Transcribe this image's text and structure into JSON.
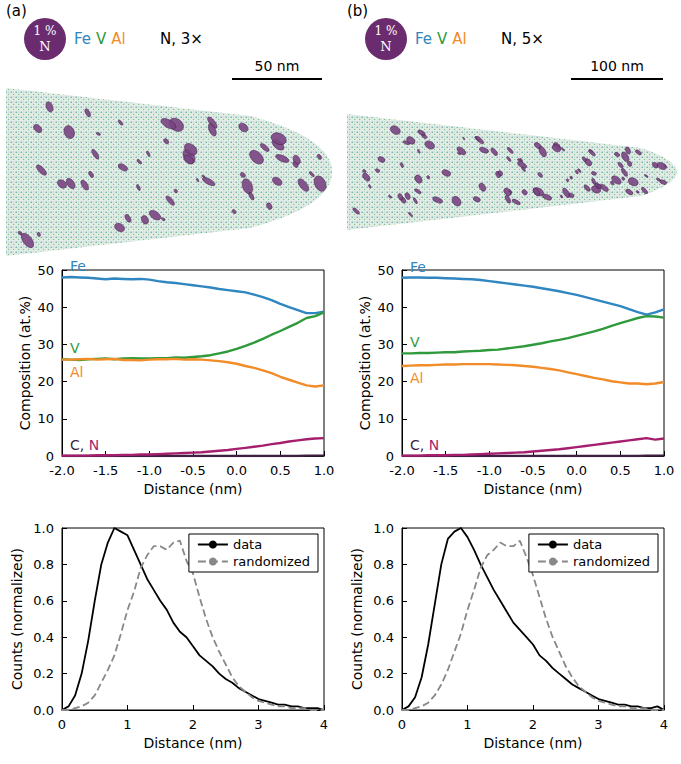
{
  "panels": [
    {
      "letter": "(a)",
      "isosurface": {
        "value": "1 %",
        "element": "N",
        "color": "#6b2c6f"
      },
      "elements": [
        {
          "text": "Fe",
          "color": "#2f86c0"
        },
        {
          "text": "V",
          "color": "#2f9a3c"
        },
        {
          "text": "Al",
          "color": "#f28c28"
        }
      ],
      "ion_label": "N, 3×",
      "scale_bar": "50 nm"
    },
    {
      "letter": "(b)",
      "isosurface": {
        "value": "1 %",
        "element": "N",
        "color": "#6b2c6f"
      },
      "elements": [
        {
          "text": "Fe",
          "color": "#2f86c0"
        },
        {
          "text": "V",
          "color": "#2f9a3c"
        },
        {
          "text": "Al",
          "color": "#f28c28"
        }
      ],
      "ion_label": "N, 5×",
      "scale_bar": "100 nm"
    }
  ],
  "chart_data": [
    {
      "type": "line",
      "xlabel": "Distance (nm)",
      "ylabel": "Composition (at.%)",
      "x": [
        -2,
        -1.9,
        -1.8,
        -1.7,
        -1.6,
        -1.5,
        -1.4,
        -1.3,
        -1.2,
        -1.1,
        -1,
        -0.9,
        -0.8,
        -0.7,
        -0.6,
        -0.5,
        -0.4,
        -0.3,
        -0.2,
        -0.1,
        0,
        0.1,
        0.2,
        0.3,
        0.4,
        0.5,
        0.6,
        0.7,
        0.8,
        0.9,
        1
      ],
      "series": [
        {
          "name": "Fe",
          "color": "#2f86c0",
          "values": [
            48.0,
            48.1,
            48.0,
            47.9,
            47.7,
            47.5,
            47.7,
            47.6,
            47.5,
            47.6,
            47.4,
            47.0,
            46.7,
            46.5,
            46.2,
            45.9,
            45.6,
            45.3,
            44.9,
            44.6,
            44.3,
            44.0,
            43.4,
            42.7,
            41.9,
            40.9,
            40.0,
            39.2,
            38.4,
            38.4,
            38.8
          ]
        },
        {
          "name": "V",
          "color": "#2f9a3c",
          "values": [
            26.0,
            25.9,
            25.8,
            26.0,
            26.1,
            26.2,
            26.0,
            26.2,
            26.3,
            26.2,
            26.2,
            26.3,
            26.3,
            26.5,
            26.4,
            26.6,
            26.8,
            27.1,
            27.6,
            28.1,
            28.8,
            29.6,
            30.5,
            31.5,
            32.6,
            33.6,
            34.7,
            35.8,
            37.1,
            37.6,
            38.6
          ]
        },
        {
          "name": "Al",
          "color": "#f28c28",
          "values": [
            25.9,
            25.9,
            26.0,
            26.1,
            25.9,
            26.0,
            26.1,
            25.8,
            25.8,
            25.7,
            25.9,
            26.0,
            26.0,
            26.1,
            25.9,
            26.0,
            25.9,
            25.7,
            25.5,
            25.2,
            24.8,
            24.2,
            23.7,
            23.0,
            22.3,
            21.3,
            20.5,
            19.7,
            19.0,
            18.7,
            19.0
          ]
        },
        {
          "name": "C",
          "color": "#3d1f3f",
          "values": [
            0.0,
            0.0,
            0.0,
            0.0,
            0.0,
            0.0,
            0.0,
            0.0,
            0.0,
            0.0,
            0.0,
            0.0,
            0.0,
            0.0,
            0.0,
            0.0,
            0.0,
            0.0,
            0.0,
            0.0,
            0.0,
            0.0,
            0.0,
            0.0,
            0.0,
            0.0,
            0.0,
            0.0,
            0.1,
            0.1,
            0.1
          ]
        },
        {
          "name": "N",
          "color": "#a51f6e",
          "values": [
            0.1,
            0.1,
            0.1,
            0.1,
            0.2,
            0.2,
            0.2,
            0.3,
            0.3,
            0.4,
            0.4,
            0.5,
            0.6,
            0.7,
            0.8,
            0.9,
            1.0,
            1.2,
            1.4,
            1.6,
            1.9,
            2.2,
            2.5,
            2.8,
            3.2,
            3.5,
            3.9,
            4.2,
            4.5,
            4.7,
            4.8
          ]
        }
      ],
      "xlim": [
        -2,
        1
      ],
      "xticks": [
        {
          "value": -2,
          "label": "-2.0"
        },
        -1.5,
        {
          "value": -1,
          "label": "-1.0"
        },
        -0.5,
        {
          "value": 0,
          "label": "0.0"
        },
        0.5,
        {
          "value": 1,
          "label": "1.0"
        }
      ],
      "ylim": [
        0,
        50
      ],
      "yticks": [
        0,
        10,
        20,
        30,
        40,
        50
      ]
    },
    {
      "type": "line",
      "xlabel": "Distance (nm)",
      "ylabel": "Counts (normalized)",
      "x": [
        0,
        0.1,
        0.2,
        0.3,
        0.4,
        0.5,
        0.6,
        0.7,
        0.8,
        0.9,
        1,
        1.1,
        1.2,
        1.3,
        1.4,
        1.5,
        1.6,
        1.7,
        1.8,
        1.9,
        2,
        2.1,
        2.2,
        2.3,
        2.4,
        2.5,
        2.6,
        2.7,
        2.8,
        2.9,
        3,
        3.1,
        3.2,
        3.3,
        3.4,
        3.5,
        3.6,
        3.7,
        3.8,
        3.9,
        4
      ],
      "series": [
        {
          "name": "data",
          "color": "#000000",
          "line_style": "solid",
          "values": [
            0,
            0.02,
            0.08,
            0.2,
            0.38,
            0.6,
            0.8,
            0.92,
            1.0,
            0.98,
            0.96,
            0.88,
            0.8,
            0.72,
            0.66,
            0.6,
            0.55,
            0.48,
            0.43,
            0.4,
            0.35,
            0.3,
            0.27,
            0.24,
            0.2,
            0.17,
            0.15,
            0.12,
            0.1,
            0.08,
            0.06,
            0.05,
            0.04,
            0.03,
            0.03,
            0.02,
            0.02,
            0.01,
            0.01,
            0.01,
            0.0
          ]
        },
        {
          "name": "randomized",
          "color": "#888888",
          "line_style": "dashed",
          "values": [
            0,
            0,
            0.01,
            0.02,
            0.04,
            0.08,
            0.15,
            0.22,
            0.3,
            0.42,
            0.55,
            0.65,
            0.78,
            0.85,
            0.9,
            0.9,
            0.88,
            0.92,
            0.93,
            0.82,
            0.75,
            0.62,
            0.5,
            0.4,
            0.32,
            0.25,
            0.18,
            0.13,
            0.1,
            0.07,
            0.05,
            0.04,
            0.03,
            0.02,
            0.02,
            0.01,
            0.01,
            0.01,
            0,
            0,
            0
          ]
        }
      ],
      "legend": "upper right",
      "xlim": [
        0,
        4
      ],
      "xticks": [
        0,
        1,
        2,
        3,
        4
      ],
      "ylim": [
        0,
        1
      ],
      "yticks": [
        {
          "value": 0,
          "label": "0.0"
        },
        0.2,
        0.4,
        0.6,
        0.8,
        {
          "value": 1,
          "label": "1.0"
        }
      ]
    },
    {
      "type": "line",
      "xlabel": "Distance (nm)",
      "ylabel": "Composition (at.%)",
      "x": [
        -2,
        -1.9,
        -1.8,
        -1.7,
        -1.6,
        -1.5,
        -1.4,
        -1.3,
        -1.2,
        -1.1,
        -1,
        -0.9,
        -0.8,
        -0.7,
        -0.6,
        -0.5,
        -0.4,
        -0.3,
        -0.2,
        -0.1,
        0,
        0.1,
        0.2,
        0.3,
        0.4,
        0.5,
        0.6,
        0.7,
        0.8,
        0.9,
        1
      ],
      "series": [
        {
          "name": "Fe",
          "color": "#2f86c0",
          "values": [
            47.9,
            48.0,
            48.0,
            47.9,
            47.9,
            47.8,
            47.7,
            47.6,
            47.5,
            47.3,
            47.0,
            46.7,
            46.4,
            46.1,
            45.8,
            45.5,
            45.1,
            44.7,
            44.3,
            43.8,
            43.3,
            42.7,
            42.1,
            41.5,
            40.9,
            40.3,
            39.5,
            38.7,
            38.0,
            38.6,
            39.4
          ]
        },
        {
          "name": "V",
          "color": "#2f9a3c",
          "values": [
            27.6,
            27.6,
            27.7,
            27.7,
            27.8,
            27.9,
            27.9,
            28.1,
            28.2,
            28.3,
            28.5,
            28.6,
            28.9,
            29.2,
            29.5,
            29.9,
            30.3,
            30.8,
            31.2,
            31.7,
            32.3,
            32.9,
            33.5,
            34.2,
            35.0,
            35.7,
            36.4,
            37.1,
            37.6,
            37.5,
            37.2
          ]
        },
        {
          "name": "Al",
          "color": "#f28c28",
          "values": [
            24.2,
            24.3,
            24.4,
            24.4,
            24.5,
            24.6,
            24.6,
            24.7,
            24.7,
            24.7,
            24.7,
            24.6,
            24.5,
            24.4,
            24.2,
            24.0,
            23.7,
            23.4,
            23.0,
            22.5,
            22.0,
            21.5,
            21.0,
            20.6,
            20.1,
            19.8,
            19.5,
            19.5,
            19.3,
            19.5,
            19.9
          ]
        },
        {
          "name": "C",
          "color": "#3d1f3f",
          "values": [
            0.0,
            0.0,
            0.0,
            0.0,
            0.0,
            0.0,
            0.0,
            0.0,
            0.0,
            0.0,
            0.0,
            0.0,
            0.0,
            0.0,
            0.0,
            0.0,
            0.0,
            0.0,
            0.0,
            0.0,
            0.0,
            0.0,
            0.0,
            0.0,
            0.0,
            0.0,
            0.0,
            0.0,
            0.1,
            0.1,
            0.1
          ]
        },
        {
          "name": "N",
          "color": "#a51f6e",
          "values": [
            0.1,
            0.1,
            0.1,
            0.2,
            0.2,
            0.2,
            0.3,
            0.3,
            0.4,
            0.5,
            0.6,
            0.7,
            0.8,
            0.9,
            1.0,
            1.2,
            1.4,
            1.6,
            1.8,
            2.1,
            2.4,
            2.7,
            3.0,
            3.3,
            3.6,
            3.9,
            4.2,
            4.5,
            4.8,
            4.4,
            4.7
          ]
        }
      ],
      "xlim": [
        -2,
        1
      ],
      "xticks": [
        {
          "value": -2,
          "label": "-2.0"
        },
        -1.5,
        {
          "value": -1,
          "label": "-1.0"
        },
        -0.5,
        {
          "value": 0,
          "label": "0.0"
        },
        0.5,
        {
          "value": 1,
          "label": "1.0"
        }
      ],
      "ylim": [
        0,
        50
      ],
      "yticks": [
        0,
        10,
        20,
        30,
        40,
        50
      ]
    },
    {
      "type": "line",
      "xlabel": "Distance (nm)",
      "ylabel": "Counts (normalized)",
      "x": [
        0,
        0.1,
        0.2,
        0.3,
        0.4,
        0.5,
        0.6,
        0.7,
        0.8,
        0.9,
        1,
        1.1,
        1.2,
        1.3,
        1.4,
        1.5,
        1.6,
        1.7,
        1.8,
        1.9,
        2,
        2.1,
        2.2,
        2.3,
        2.4,
        2.5,
        2.6,
        2.7,
        2.8,
        2.9,
        3,
        3.1,
        3.2,
        3.3,
        3.4,
        3.5,
        3.6,
        3.7,
        3.8,
        3.9,
        4
      ],
      "series": [
        {
          "name": "data",
          "color": "#000000",
          "line_style": "solid",
          "values": [
            0,
            0.02,
            0.07,
            0.18,
            0.36,
            0.58,
            0.8,
            0.94,
            0.98,
            1.0,
            0.95,
            0.88,
            0.8,
            0.73,
            0.66,
            0.6,
            0.54,
            0.48,
            0.44,
            0.4,
            0.36,
            0.3,
            0.27,
            0.23,
            0.2,
            0.17,
            0.14,
            0.12,
            0.1,
            0.08,
            0.06,
            0.05,
            0.04,
            0.03,
            0.03,
            0.02,
            0.02,
            0.01,
            0.01,
            0.02,
            0.0
          ]
        },
        {
          "name": "randomized",
          "color": "#888888",
          "line_style": "dashed",
          "values": [
            0,
            0,
            0.01,
            0.02,
            0.04,
            0.08,
            0.14,
            0.22,
            0.32,
            0.42,
            0.55,
            0.66,
            0.78,
            0.85,
            0.88,
            0.92,
            0.9,
            0.9,
            0.93,
            0.84,
            0.74,
            0.62,
            0.5,
            0.4,
            0.32,
            0.24,
            0.18,
            0.13,
            0.1,
            0.07,
            0.05,
            0.04,
            0.03,
            0.02,
            0.02,
            0.01,
            0.01,
            0.01,
            0,
            0,
            0
          ]
        }
      ],
      "legend": "upper right",
      "xlim": [
        0,
        4
      ],
      "xticks": [
        0,
        1,
        2,
        3,
        4
      ],
      "ylim": [
        0,
        1
      ],
      "yticks": [
        {
          "value": 0,
          "label": "0.0"
        },
        0.2,
        0.4,
        0.6,
        0.8,
        {
          "value": 1,
          "label": "1.0"
        }
      ]
    }
  ]
}
